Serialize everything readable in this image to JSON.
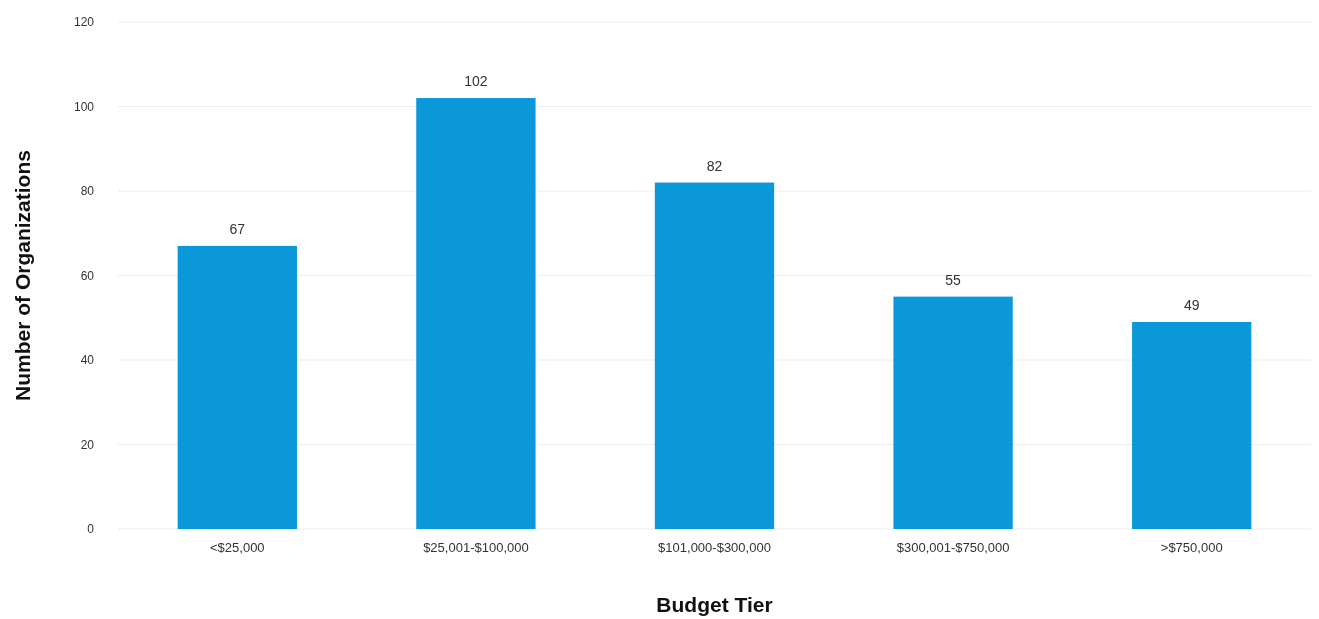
{
  "chart_data": {
    "type": "bar",
    "xlabel": "Budget Tier",
    "ylabel": "Number of Organizations",
    "categories": [
      "<$25,000",
      "$25,001-$100,000",
      "$101,000-$300,000",
      "$300,001-$750,000",
      ">$750,000"
    ],
    "values": [
      67,
      102,
      82,
      55,
      49
    ],
    "color": "#0a98d8",
    "ylim": [
      0,
      120
    ],
    "yticks": [
      0,
      20,
      40,
      60,
      80,
      100,
      120
    ],
    "grid": "y",
    "data_labels": true
  }
}
